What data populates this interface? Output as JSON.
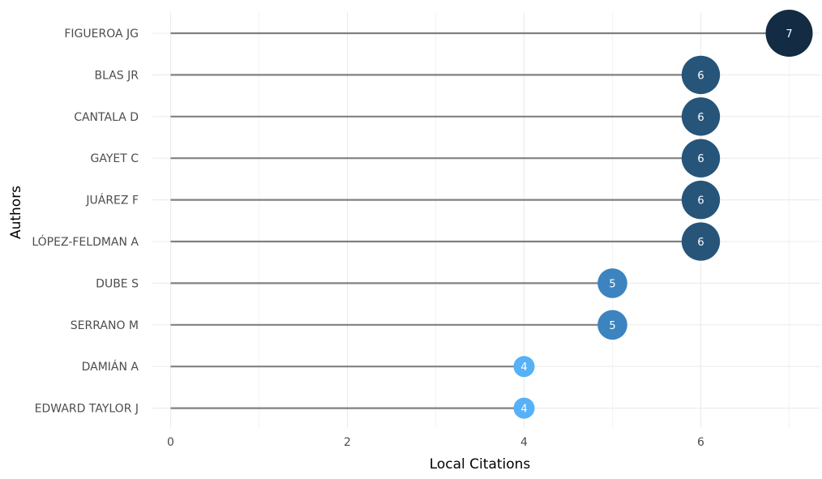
{
  "chart_data": {
    "type": "lollipop",
    "title": "",
    "xlabel": "Local Citations",
    "ylabel": "Authors",
    "xlim": [
      0,
      7.35
    ],
    "x_ticks": [
      0,
      2,
      4,
      6
    ],
    "grid": true,
    "categories": [
      "FIGUEROA JG",
      "BLAS JR",
      "CANTALA D",
      "GAYET C",
      "JUÁREZ F",
      "LÓPEZ-FELDMAN A",
      "DUBE S",
      "SERRANO M",
      "DAMIÁN A",
      "EDWARD TAYLOR J"
    ],
    "values": [
      7,
      6,
      6,
      6,
      6,
      6,
      5,
      5,
      4,
      4
    ],
    "value_labels": [
      "7",
      "6",
      "6",
      "6",
      "6",
      "6",
      "5",
      "5",
      "4",
      "4"
    ],
    "colors": {
      "stem": "#808080",
      "grid": "#ebebeb",
      "level_7": "#132b43",
      "level_6": "#27557a",
      "level_5": "#3c84bf",
      "level_4": "#56b1f7"
    }
  }
}
